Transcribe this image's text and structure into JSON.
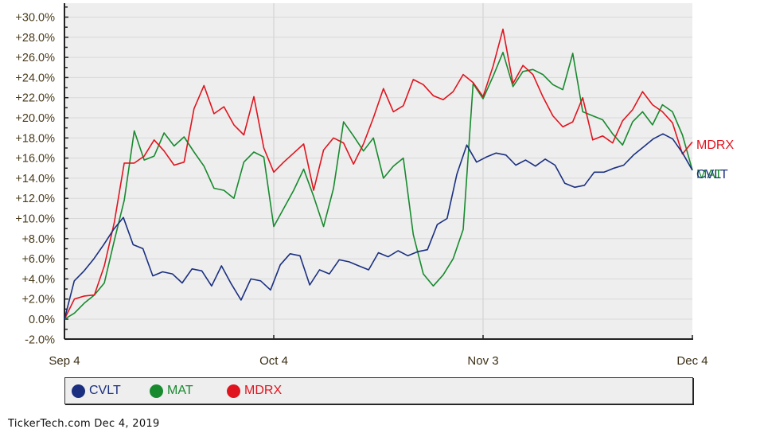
{
  "chart_data": {
    "type": "line",
    "title": "",
    "xlabel": "",
    "ylabel": "",
    "ylim": [
      -2.0,
      30.0
    ],
    "yticks": [
      "+30.0%",
      "+28.0%",
      "+26.0%",
      "+24.0%",
      "+22.0%",
      "+20.0%",
      "+18.0%",
      "+16.0%",
      "+14.0%",
      "+12.0%",
      "+10.0%",
      "+8.0%",
      "+6.0%",
      "+4.0%",
      "+2.0%",
      "0.0%",
      "-2.0%"
    ],
    "xticks": [
      "Sep 4",
      "Oct 4",
      "Nov 3",
      "Dec 4"
    ],
    "grid": true,
    "legend_position": "bottom",
    "series": [
      {
        "name": "CVLT",
        "color": "#1a2f80",
        "values": [
          0.0,
          3.8,
          4.8,
          6.0,
          7.4,
          8.9,
          10.1,
          7.4,
          7.0,
          4.3,
          4.7,
          4.5,
          3.6,
          5.0,
          4.8,
          3.3,
          5.3,
          3.5,
          1.9,
          4.0,
          3.8,
          2.9,
          5.4,
          6.5,
          6.3,
          3.4,
          4.9,
          4.5,
          5.9,
          5.7,
          5.3,
          4.9,
          6.6,
          6.2,
          6.8,
          6.3,
          6.7,
          6.9,
          9.4,
          10.0,
          14.4,
          17.3,
          15.6,
          16.1,
          16.5,
          16.3,
          15.3,
          15.8,
          15.2,
          15.9,
          15.3,
          13.5,
          13.1,
          13.3,
          14.6,
          14.6,
          15.0,
          15.3,
          16.3,
          17.1,
          17.9,
          18.4,
          17.9,
          16.5,
          14.8
        ],
        "end_label": "CVLT"
      },
      {
        "name": "MAT",
        "color": "#178a2e",
        "values": [
          0.0,
          0.6,
          1.6,
          2.4,
          3.6,
          7.8,
          11.8,
          18.7,
          15.8,
          16.2,
          18.5,
          17.2,
          18.1,
          16.6,
          15.2,
          13.0,
          12.8,
          12.0,
          15.6,
          16.6,
          16.1,
          9.2,
          11.0,
          12.8,
          14.9,
          12.2,
          9.2,
          13.0,
          19.6,
          18.2,
          16.7,
          18.0,
          14.0,
          15.2,
          16.0,
          8.4,
          4.5,
          3.3,
          4.4,
          6.0,
          8.9,
          23.4,
          21.9,
          24.1,
          26.5,
          23.1,
          24.6,
          24.8,
          24.3,
          23.3,
          22.8,
          26.4,
          20.6,
          20.2,
          19.8,
          18.4,
          17.3,
          19.6,
          20.6,
          19.3,
          21.3,
          20.6,
          18.3,
          14.8
        ],
        "end_label": "MAT"
      },
      {
        "name": "MDRX",
        "color": "#e0141e",
        "values": [
          0.0,
          2.0,
          2.3,
          2.4,
          5.3,
          9.6,
          15.5,
          15.5,
          16.2,
          17.8,
          16.7,
          15.3,
          15.6,
          20.9,
          23.2,
          20.4,
          21.1,
          19.3,
          18.3,
          22.1,
          17.0,
          14.6,
          15.6,
          16.5,
          17.4,
          12.8,
          16.8,
          18.0,
          17.5,
          15.4,
          17.4,
          20.0,
          22.9,
          20.6,
          21.2,
          23.8,
          23.3,
          22.2,
          21.8,
          22.6,
          24.3,
          23.5,
          22.1,
          25.1,
          28.8,
          23.4,
          25.2,
          24.3,
          22.1,
          20.2,
          19.1,
          19.6,
          22.0,
          17.8,
          18.2,
          17.5,
          19.7,
          20.8,
          22.6,
          21.3,
          20.6,
          19.5,
          16.4,
          17.6
        ],
        "end_label": "MDRX"
      }
    ]
  },
  "legend": {
    "items": [
      {
        "label": "CVLT",
        "color": "#1a2f80"
      },
      {
        "label": "MAT",
        "color": "#178a2e"
      },
      {
        "label": "MDRX",
        "color": "#e0141e"
      }
    ]
  },
  "footer": {
    "text": "TickerTech.com  Dec 4, 2019"
  },
  "colors": {
    "plot_bg": "#eeeeee",
    "grid": "#d8d8d8",
    "axis": "#222222",
    "tick_text": "#4a3c1c"
  }
}
